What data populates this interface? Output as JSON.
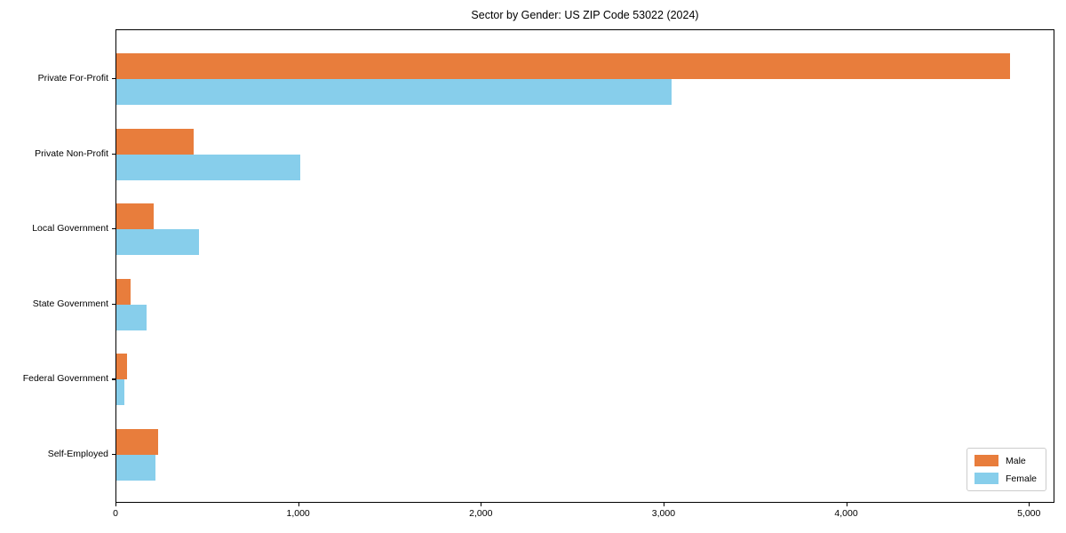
{
  "title": "Sector by Gender: US ZIP Code 53022 (2024)",
  "chart_data": {
    "type": "bar",
    "orientation": "horizontal",
    "title": "Sector by Gender: US ZIP Code 53022 (2024)",
    "categories": [
      "Private For-Profit",
      "Private Non-Profit",
      "Local Government",
      "State Government",
      "Federal Government",
      "Self-Employed"
    ],
    "series": [
      {
        "name": "Male",
        "color": "#e87d3c",
        "values": [
          4890,
          425,
          205,
          78,
          60,
          228
        ]
      },
      {
        "name": "Female",
        "color": "#87ceeb",
        "values": [
          3040,
          1005,
          450,
          165,
          45,
          212
        ]
      }
    ],
    "xlabel": "",
    "ylabel": "",
    "xlim": [
      0,
      5140
    ],
    "x_ticks": [
      0,
      1000,
      2000,
      3000,
      4000,
      5000
    ],
    "x_tick_labels": [
      "0",
      "1,000",
      "2,000",
      "3,000",
      "4,000",
      "5,000"
    ],
    "grid": false,
    "legend_position": "lower right"
  },
  "legend": {
    "items": [
      {
        "label": "Male",
        "color": "#e87d3c"
      },
      {
        "label": "Female",
        "color": "#87ceeb"
      }
    ]
  }
}
